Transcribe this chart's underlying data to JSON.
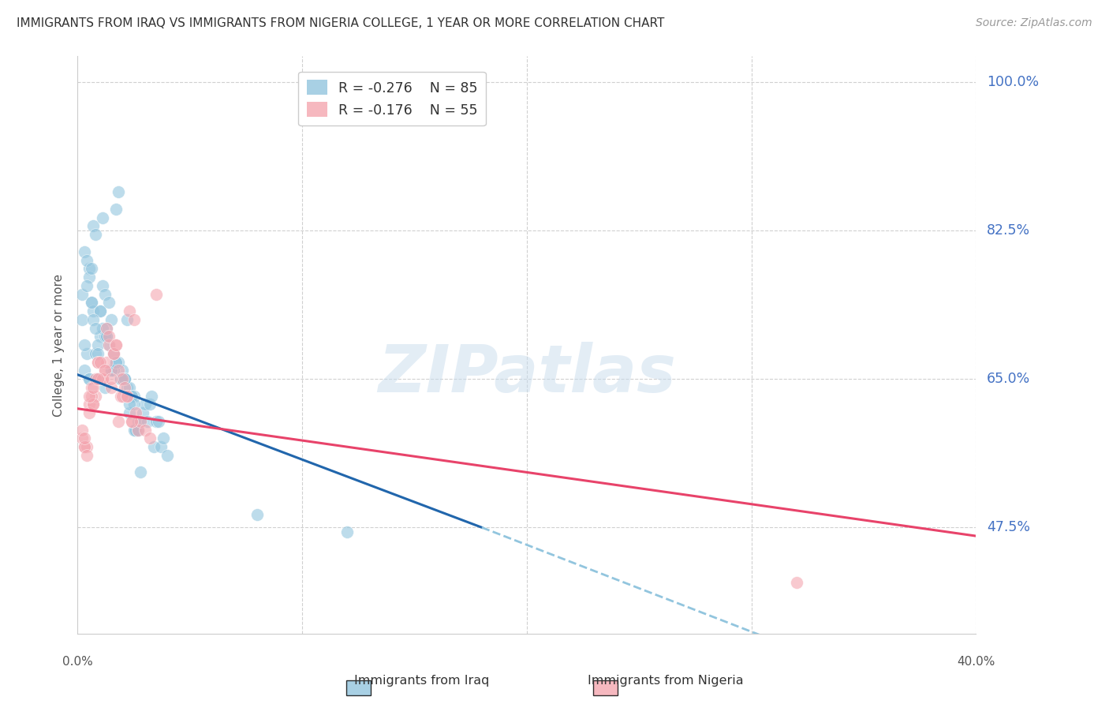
{
  "title": "IMMIGRANTS FROM IRAQ VS IMMIGRANTS FROM NIGERIA COLLEGE, 1 YEAR OR MORE CORRELATION CHART",
  "source": "Source: ZipAtlas.com",
  "ylabel": "College, 1 year or more",
  "ytick_labels": [
    "100.0%",
    "82.5%",
    "65.0%",
    "47.5%"
  ],
  "yticks": [
    100.0,
    82.5,
    65.0,
    47.5
  ],
  "ymin": 35.0,
  "ymax": 103.0,
  "xmin": 0.0,
  "xmax": 40.0,
  "legend_iraq_r": "-0.276",
  "legend_iraq_n": "85",
  "legend_nigeria_r": "-0.176",
  "legend_nigeria_n": "55",
  "iraq_color": "#92c5de",
  "nigeria_color": "#f4a6b0",
  "trendline_iraq_solid_color": "#2166ac",
  "trendline_iraq_dash_color": "#92c5de",
  "trendline_nigeria_color": "#e8436a",
  "watermark_text": "ZIPatlas",
  "iraq_trendline_x0": 0.0,
  "iraq_trendline_y0": 65.5,
  "iraq_trendline_x1": 18.0,
  "iraq_trendline_y1": 47.5,
  "iraq_trendline_xdash0": 18.0,
  "iraq_trendline_ydash0": 47.5,
  "iraq_trendline_xdash1": 40.0,
  "iraq_trendline_ydash1": 25.0,
  "nigeria_trendline_x0": 0.0,
  "nigeria_trendline_y0": 61.5,
  "nigeria_trendline_x1": 40.0,
  "nigeria_trendline_y1": 46.5,
  "iraq_points_x": [
    0.2,
    0.3,
    0.4,
    0.5,
    0.5,
    0.6,
    0.7,
    0.8,
    0.9,
    1.0,
    1.0,
    1.1,
    1.2,
    1.3,
    1.4,
    1.5,
    1.6,
    1.7,
    1.8,
    1.9,
    2.0,
    2.1,
    2.2,
    2.3,
    2.4,
    2.5,
    2.6,
    2.7,
    2.8,
    2.9,
    3.0,
    3.1,
    3.2,
    3.3,
    3.4,
    3.5,
    3.6,
    3.7,
    3.8,
    4.0,
    0.2,
    0.3,
    0.4,
    0.5,
    0.6,
    0.7,
    0.8,
    0.9,
    1.0,
    1.1,
    1.2,
    1.3,
    1.4,
    1.5,
    1.6,
    1.7,
    1.8,
    1.9,
    2.0,
    2.1,
    2.2,
    2.3,
    2.4,
    2.5,
    2.6,
    0.3,
    0.5,
    0.7,
    0.9,
    1.1,
    1.3,
    1.5,
    1.7,
    1.9,
    2.1,
    2.3,
    2.5,
    2.7,
    8.0,
    12.0,
    0.4,
    0.6,
    0.8,
    1.2,
    2.8
  ],
  "iraq_points_y": [
    72.0,
    66.0,
    68.0,
    78.0,
    65.0,
    74.0,
    73.0,
    68.0,
    65.0,
    70.0,
    73.0,
    76.0,
    75.0,
    70.0,
    69.0,
    72.0,
    68.0,
    67.0,
    67.0,
    65.0,
    66.0,
    65.0,
    64.0,
    64.0,
    63.0,
    63.0,
    59.0,
    60.0,
    60.0,
    61.0,
    62.0,
    60.0,
    62.0,
    63.0,
    57.0,
    60.0,
    60.0,
    57.0,
    58.0,
    56.0,
    75.0,
    80.0,
    79.0,
    77.0,
    74.0,
    83.0,
    82.0,
    69.0,
    73.0,
    84.0,
    70.0,
    71.0,
    74.0,
    66.0,
    66.0,
    85.0,
    87.0,
    65.0,
    65.0,
    65.0,
    72.0,
    61.0,
    63.0,
    62.0,
    59.0,
    69.0,
    65.0,
    72.0,
    68.0,
    71.0,
    70.0,
    66.0,
    67.0,
    65.0,
    65.0,
    62.0,
    59.0,
    59.0,
    49.0,
    47.0,
    76.0,
    78.0,
    71.0,
    64.0,
    54.0
  ],
  "nigeria_points_x": [
    0.2,
    0.3,
    0.4,
    0.5,
    0.6,
    0.7,
    0.8,
    0.9,
    1.0,
    1.1,
    1.2,
    1.3,
    1.4,
    1.5,
    1.6,
    1.7,
    1.8,
    1.9,
    2.0,
    2.1,
    2.2,
    2.3,
    2.4,
    2.5,
    2.6,
    2.7,
    2.8,
    3.0,
    3.2,
    3.5,
    0.2,
    0.3,
    0.4,
    0.5,
    0.6,
    0.7,
    0.8,
    0.9,
    1.0,
    1.1,
    1.2,
    1.3,
    1.4,
    1.5,
    1.6,
    1.7,
    1.8,
    2.0,
    2.2,
    2.4,
    0.3,
    0.5,
    0.7,
    0.9,
    32.0
  ],
  "nigeria_points_y": [
    58.0,
    57.0,
    57.0,
    62.0,
    64.0,
    62.0,
    63.0,
    67.0,
    65.0,
    65.0,
    66.0,
    67.0,
    69.0,
    64.0,
    68.0,
    69.0,
    66.0,
    63.0,
    65.0,
    64.0,
    63.0,
    73.0,
    60.0,
    72.0,
    61.0,
    59.0,
    60.0,
    59.0,
    58.0,
    75.0,
    59.0,
    57.0,
    56.0,
    61.0,
    63.0,
    62.0,
    65.0,
    67.0,
    67.0,
    65.0,
    66.0,
    71.0,
    70.0,
    65.0,
    68.0,
    69.0,
    60.0,
    63.0,
    63.0,
    60.0,
    58.0,
    63.0,
    64.0,
    65.0,
    41.0
  ]
}
